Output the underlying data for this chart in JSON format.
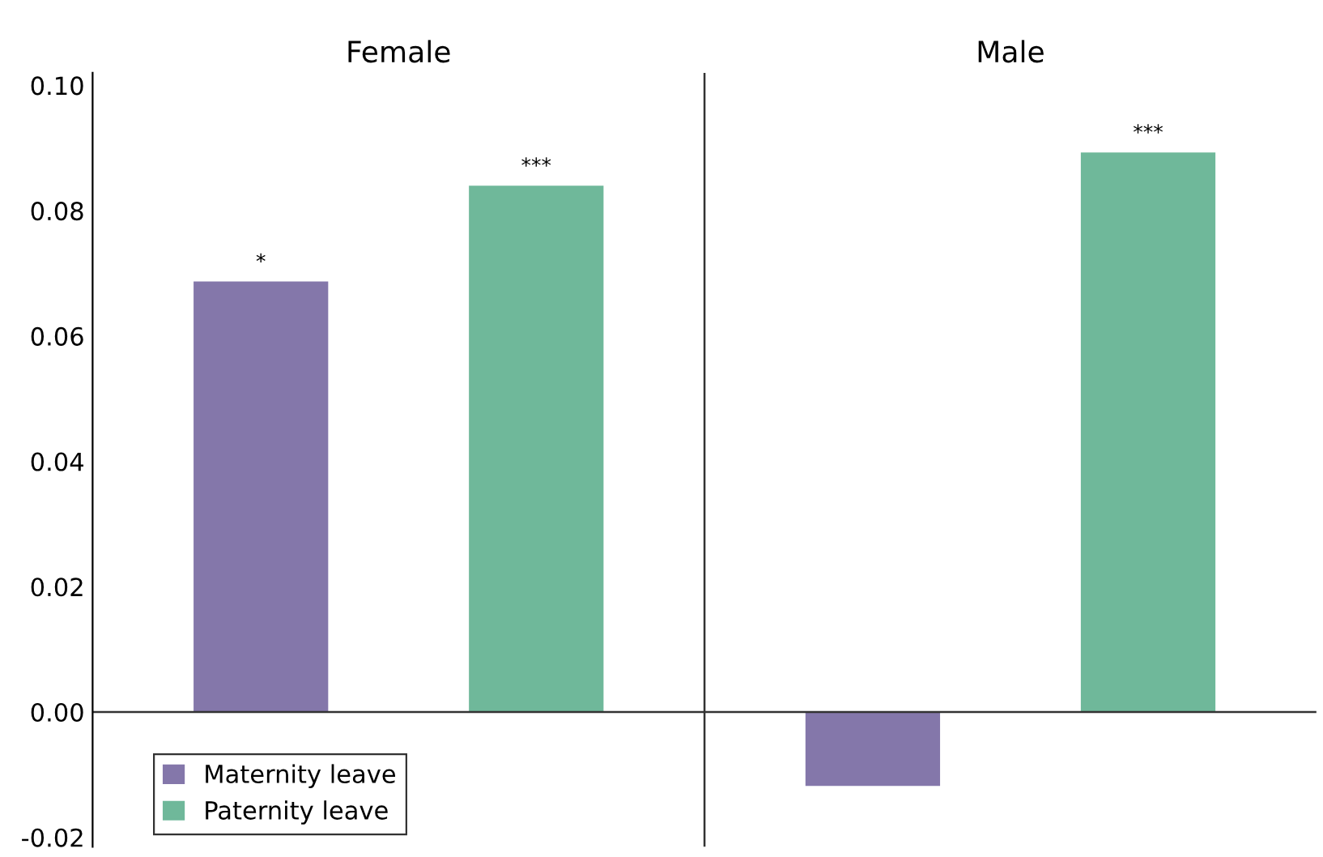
{
  "chart_data": {
    "type": "bar",
    "categories": [
      "Female",
      "Male"
    ],
    "series": [
      {
        "name": "Maternity leave",
        "color": "#8477aa",
        "values": [
          0.0687,
          -0.0118
        ],
        "value_labels": [
          "*",
          null
        ]
      },
      {
        "name": "Paternity leave",
        "color": "#6fb89a",
        "values": [
          0.084,
          0.0893
        ],
        "value_labels": [
          "***",
          "***"
        ]
      }
    ],
    "ylim": [
      -0.0215,
      0.102
    ],
    "yticks": [
      {
        "value": -0.02,
        "label": "-0.02"
      },
      {
        "value": 0.0,
        "label": "0.00"
      },
      {
        "value": 0.02,
        "label": "0.02"
      },
      {
        "value": 0.04,
        "label": "0.04"
      },
      {
        "value": 0.06,
        "label": "0.06"
      },
      {
        "value": 0.08,
        "label": "0.08"
      },
      {
        "value": 0.1,
        "label": "0.10"
      }
    ],
    "ref_lines": [
      {
        "axis": "y",
        "value": 0
      }
    ],
    "legend": "bottom left",
    "grid": false
  }
}
